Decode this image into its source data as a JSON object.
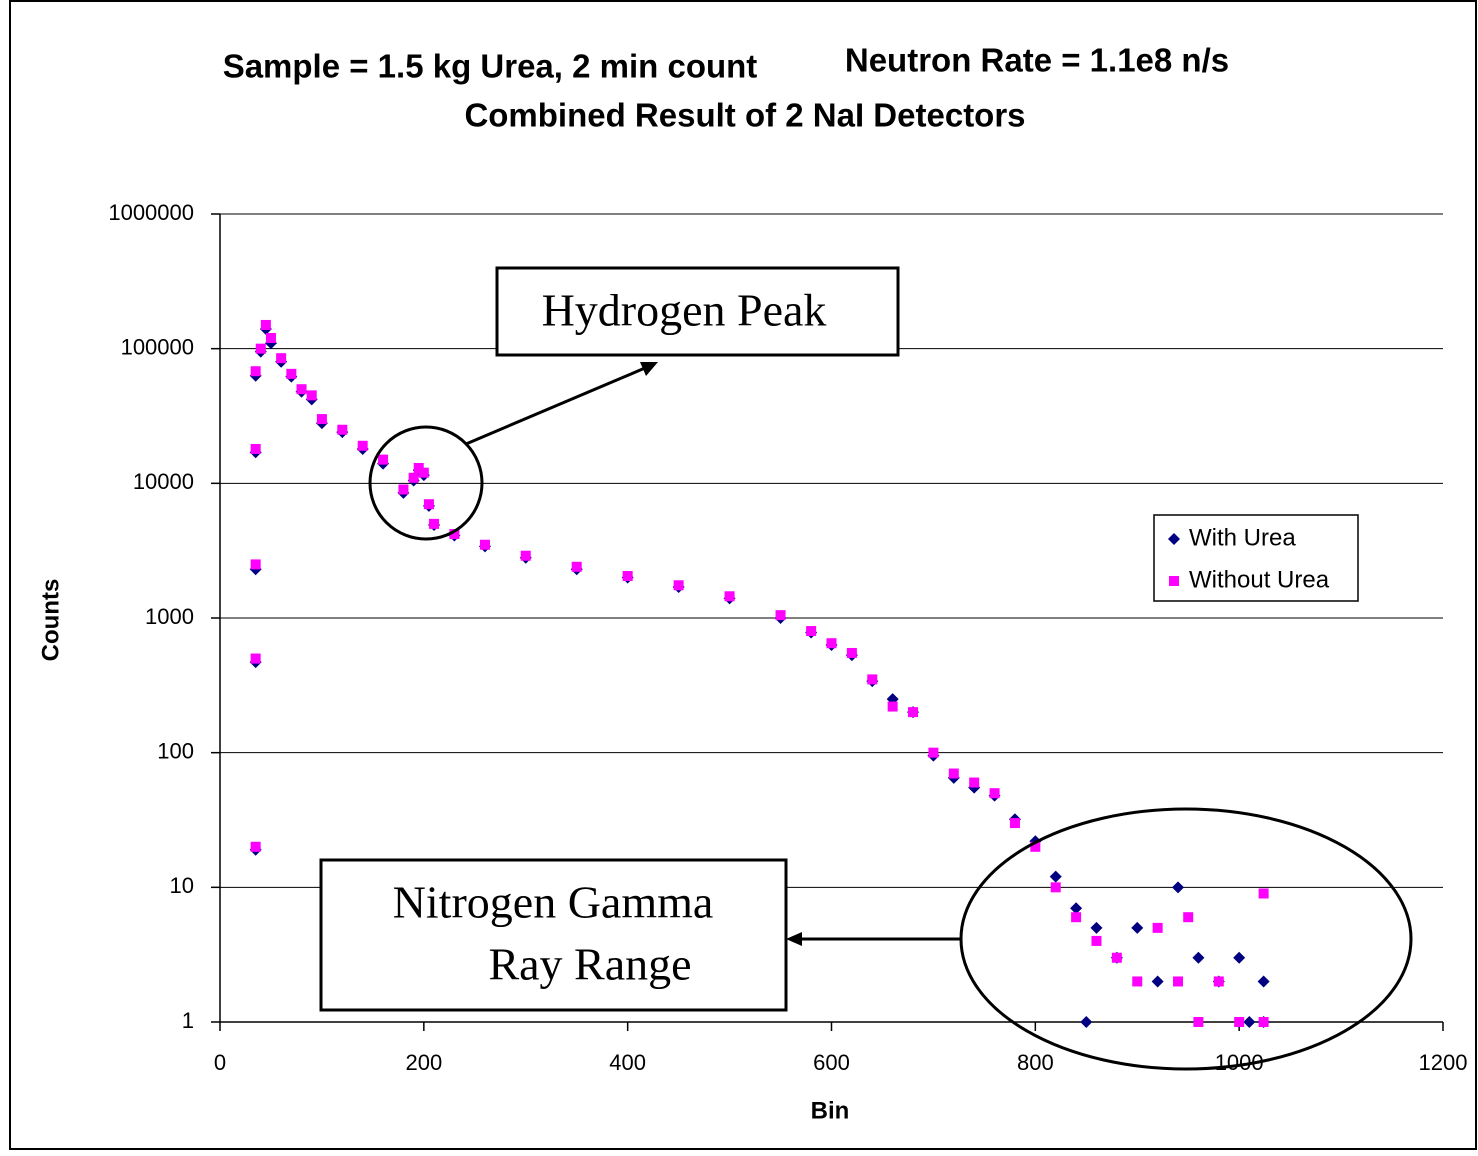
{
  "chart_data": {
    "type": "scatter",
    "title_lines": [
      "Sample = 1.5 kg Urea, 2 min count",
      "Neutron Rate = 1.1e8 n/s",
      "Combined Result of 2 NaI Detectors"
    ],
    "xlabel": "Bin",
    "ylabel": "Counts",
    "log_y": true,
    "grid": true,
    "legend": "right",
    "xlim": [
      0,
      1200
    ],
    "xticks": [
      0,
      200,
      400,
      600,
      800,
      1000,
      1200
    ],
    "ylim": [
      1,
      1000000
    ],
    "yticks": [
      1,
      10,
      100,
      1000,
      10000,
      100000,
      1000000
    ],
    "annotations": [
      [
        "Hydrogen Peak"
      ],
      [
        "Nitrogen Gamma",
        "Ray Range"
      ]
    ],
    "series": [
      {
        "name": "With Urea",
        "color": "#000080",
        "marker": "diamond",
        "x": [
          35,
          35,
          35,
          35,
          35,
          40,
          45,
          50,
          60,
          70,
          80,
          90,
          100,
          120,
          140,
          160,
          180,
          190,
          195,
          200,
          205,
          210,
          230,
          260,
          300,
          350,
          400,
          450,
          500,
          550,
          580,
          600,
          620,
          640,
          660,
          680,
          700,
          720,
          740,
          760,
          780,
          800,
          820,
          840,
          850,
          860,
          880,
          900,
          920,
          940,
          960,
          980,
          1000,
          1010,
          1024,
          1024
        ],
        "values": [
          19,
          470,
          2300,
          17000,
          63000,
          95000,
          140000,
          110000,
          80000,
          62000,
          48000,
          42000,
          28000,
          24000,
          18000,
          14000,
          8500,
          10500,
          12500,
          11500,
          6800,
          4900,
          4100,
          3400,
          2800,
          2300,
          2000,
          1700,
          1400,
          1000,
          780,
          630,
          530,
          340,
          250,
          200,
          95,
          65,
          55,
          48,
          32,
          22,
          12,
          7,
          1,
          5,
          3,
          5,
          2,
          10,
          3,
          2,
          3,
          1,
          2,
          1
        ]
      },
      {
        "name": "Without Urea",
        "color": "#ff00ff",
        "marker": "square",
        "x": [
          35,
          35,
          35,
          35,
          35,
          40,
          45,
          50,
          60,
          70,
          80,
          90,
          100,
          120,
          140,
          160,
          180,
          190,
          195,
          200,
          205,
          210,
          230,
          260,
          300,
          350,
          400,
          450,
          500,
          550,
          580,
          600,
          620,
          640,
          660,
          680,
          700,
          720,
          740,
          760,
          780,
          800,
          820,
          840,
          860,
          880,
          900,
          920,
          940,
          950,
          960,
          980,
          1000,
          1024,
          1024
        ],
        "values": [
          20,
          500,
          2500,
          18000,
          68000,
          100000,
          150000,
          120000,
          85000,
          65000,
          50000,
          45000,
          30000,
          25000,
          19000,
          15000,
          9000,
          11000,
          13000,
          12000,
          7000,
          5000,
          4200,
          3500,
          2900,
          2400,
          2050,
          1750,
          1450,
          1050,
          800,
          650,
          550,
          350,
          220,
          200,
          100,
          70,
          60,
          50,
          30,
          20,
          10,
          6,
          4,
          3,
          2,
          5,
          2,
          6,
          1,
          2,
          1,
          9,
          1
        ]
      }
    ]
  }
}
